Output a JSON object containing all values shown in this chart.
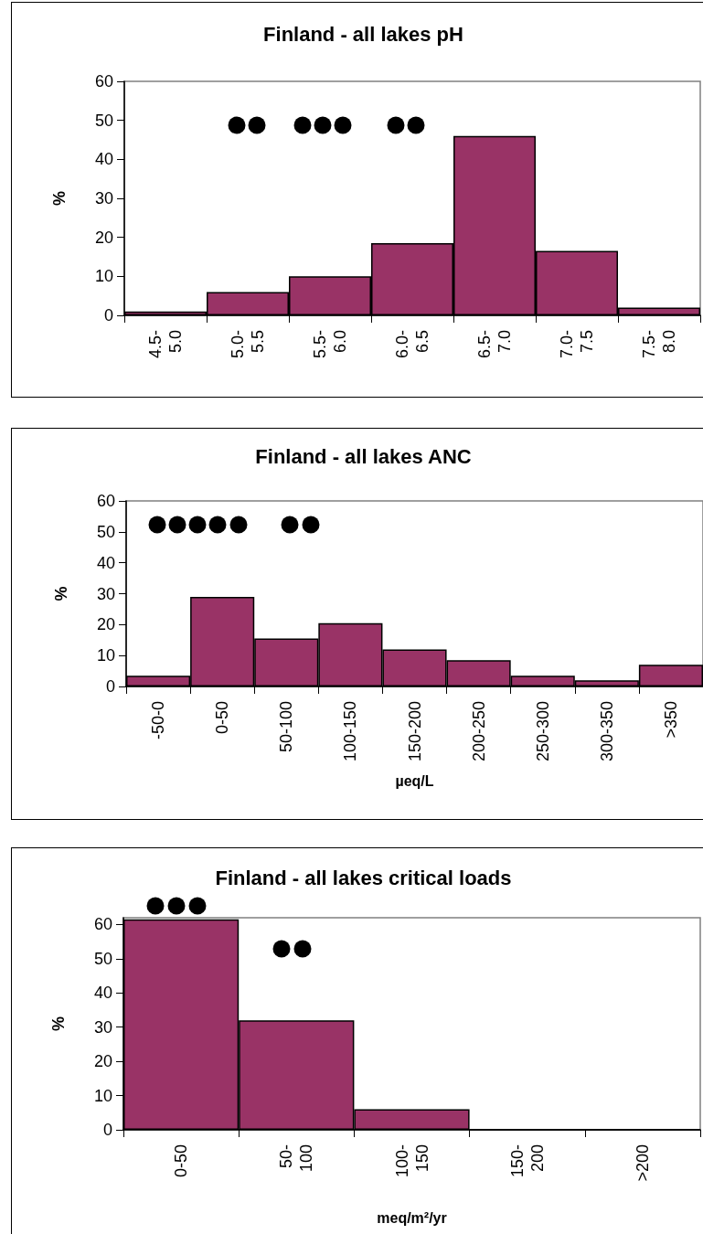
{
  "chart_data": [
    {
      "type": "bar",
      "title": "Finland - all lakes pH",
      "ylabel": "%",
      "categories": [
        "4.5-\n5.0",
        "5.0-\n5.5",
        "5.5-\n6.0",
        "6.0-\n6.5",
        "6.5-\n7.0",
        "7.0-\n7.5",
        "7.5-\n8.0"
      ],
      "values": [
        1,
        6,
        10,
        18.5,
        46,
        16.5,
        2
      ],
      "color": "#993366",
      "ylim": [
        0,
        60
      ],
      "yticks": [
        0,
        10,
        20,
        30,
        40,
        50,
        60
      ]
    },
    {
      "type": "bar",
      "title": "Finland - all lakes ANC",
      "ylabel": "%",
      "xlabel": "µeq/L",
      "categories": [
        "-50-0",
        "0-50",
        "50-100",
        "100-150",
        "150-200",
        "200-250",
        "250-300",
        "300-350",
        ">350"
      ],
      "values": [
        3.5,
        29,
        15.5,
        20.5,
        12,
        8.5,
        3.5,
        2,
        7
      ],
      "color": "#993366",
      "ylim": [
        0,
        60
      ],
      "yticks": [
        0,
        10,
        20,
        30,
        40,
        50,
        60
      ]
    },
    {
      "type": "bar",
      "title": "Finland - all lakes critical loads",
      "ylabel": "%",
      "xlabel": "meq/m²/yr",
      "categories": [
        "0-50",
        "50-\n100",
        "100-\n150",
        "150-\n200",
        ">200"
      ],
      "values": [
        61.5,
        32,
        6,
        0,
        0
      ],
      "color": "#993366",
      "ylim": [
        0,
        62
      ],
      "yticks": [
        0,
        10,
        20,
        30,
        40,
        50,
        60
      ]
    }
  ]
}
